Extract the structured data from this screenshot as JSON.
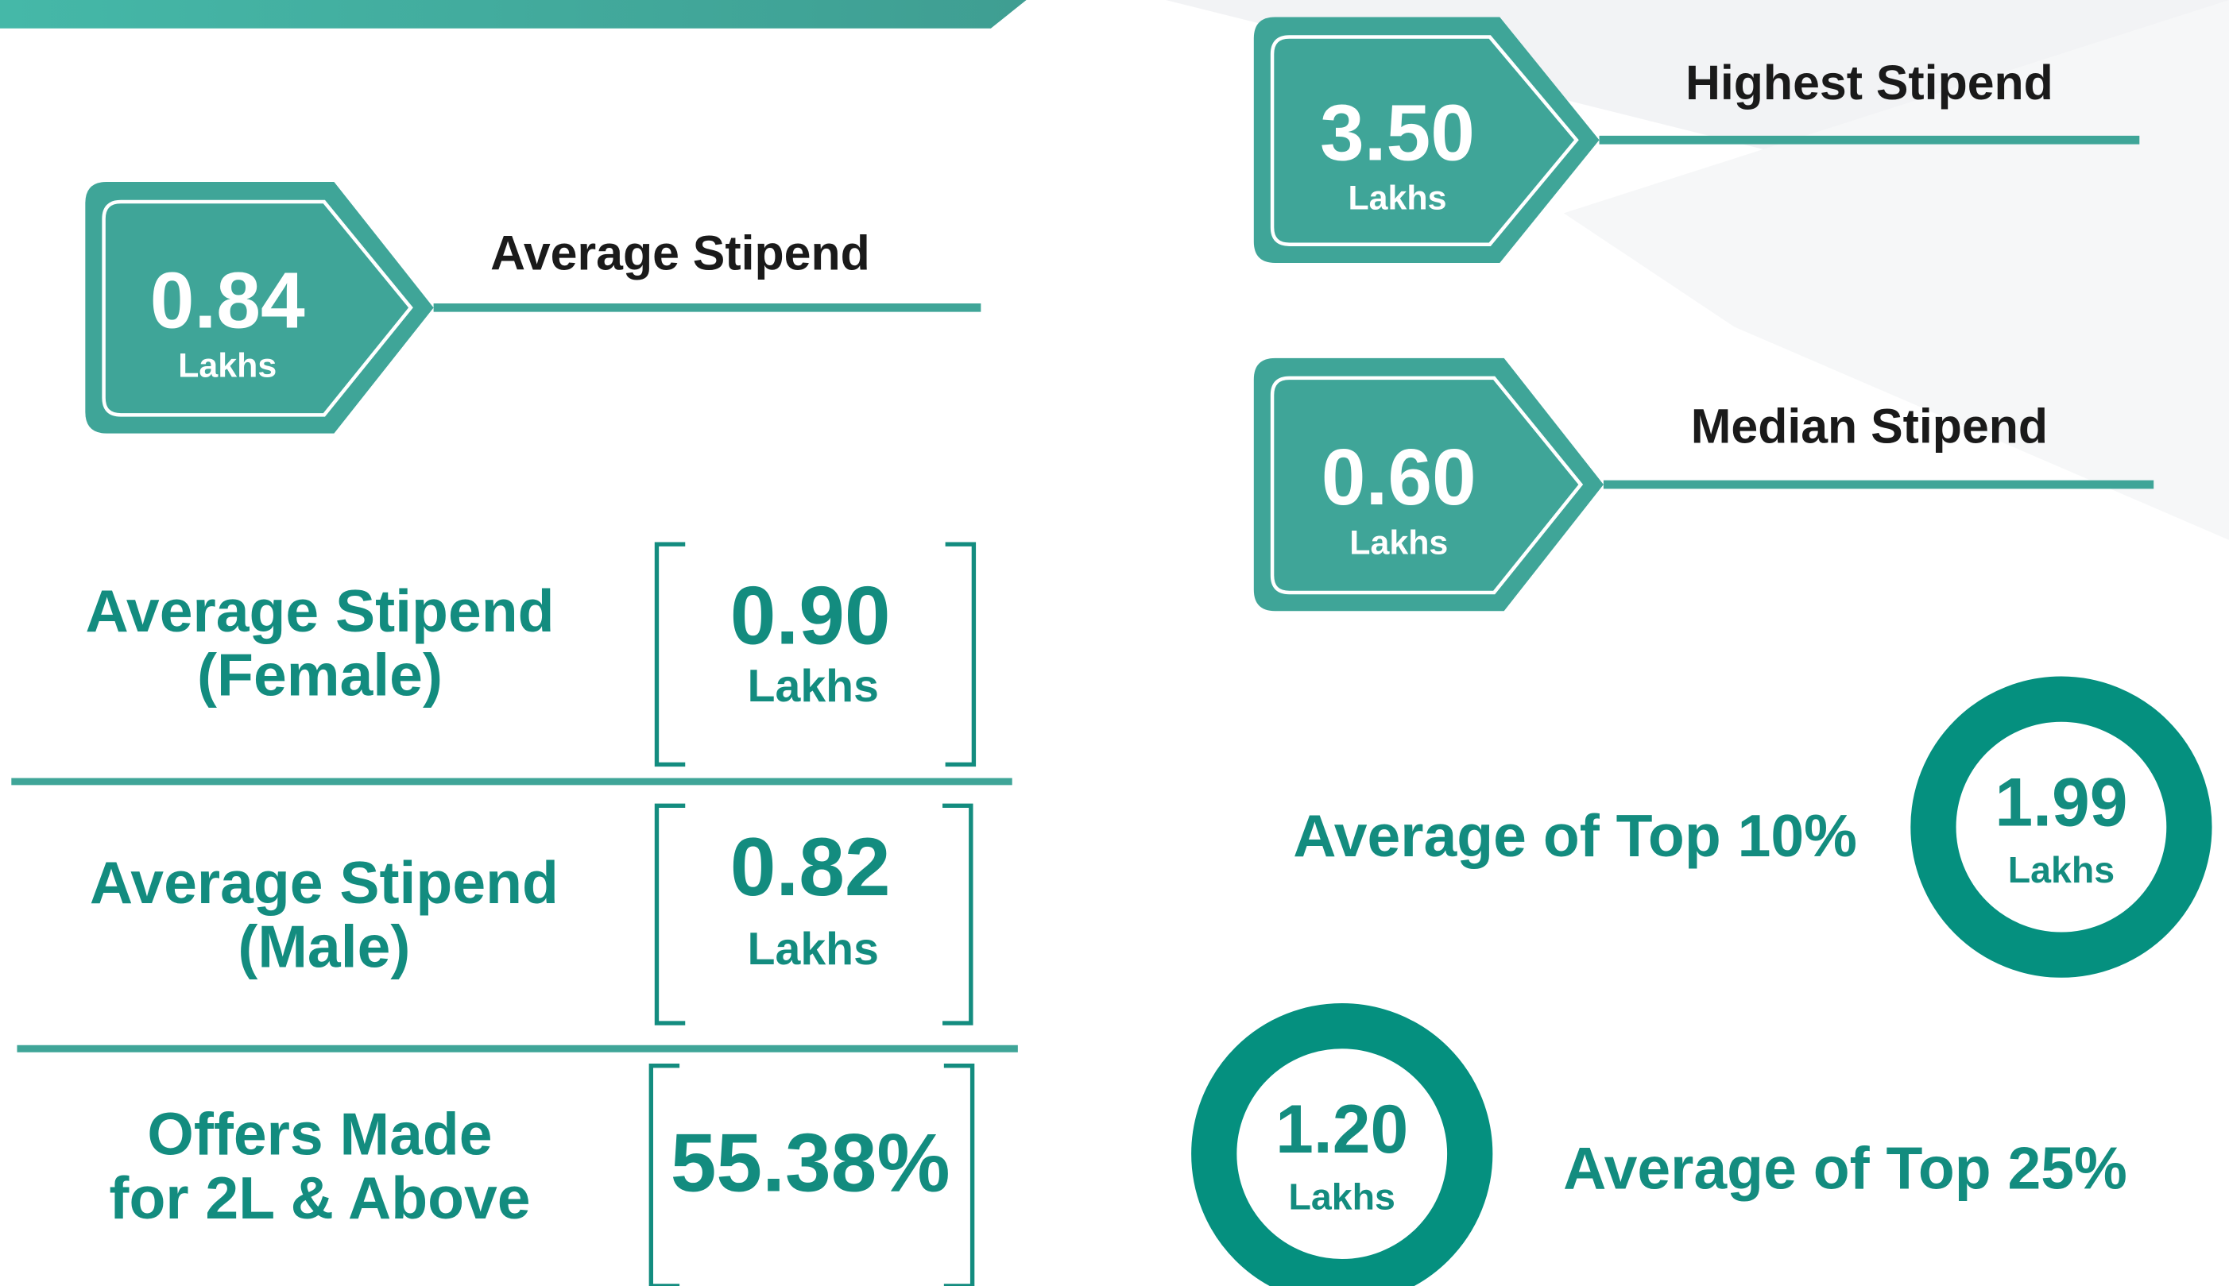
{
  "stats": [
    {
      "value": "0.84",
      "unit": "Lakhs",
      "label": "Average Stipend"
    },
    {
      "value": "3.50",
      "unit": "Lakhs",
      "label": "Highest Stipend"
    },
    {
      "value": "0.60",
      "unit": "Lakhs",
      "label": "Median Stipend"
    }
  ],
  "rows": [
    {
      "label_lines": [
        "Average Stipend",
        "(Female)"
      ],
      "value": "0.90",
      "unit": "Lakhs"
    },
    {
      "label_lines": [
        "Average Stipend",
        "(Male)"
      ],
      "value": "0.82",
      "unit": "Lakhs"
    },
    {
      "label_lines": [
        "Offers Made",
        "for 2L & Above"
      ],
      "value": "55.38%"
    }
  ],
  "rings": [
    {
      "value": "1.99",
      "unit": "Lakhs",
      "label": "Average of Top 10%"
    },
    {
      "value": "1.20",
      "unit": "Lakhs",
      "label": "Average of Top 25%"
    }
  ]
}
